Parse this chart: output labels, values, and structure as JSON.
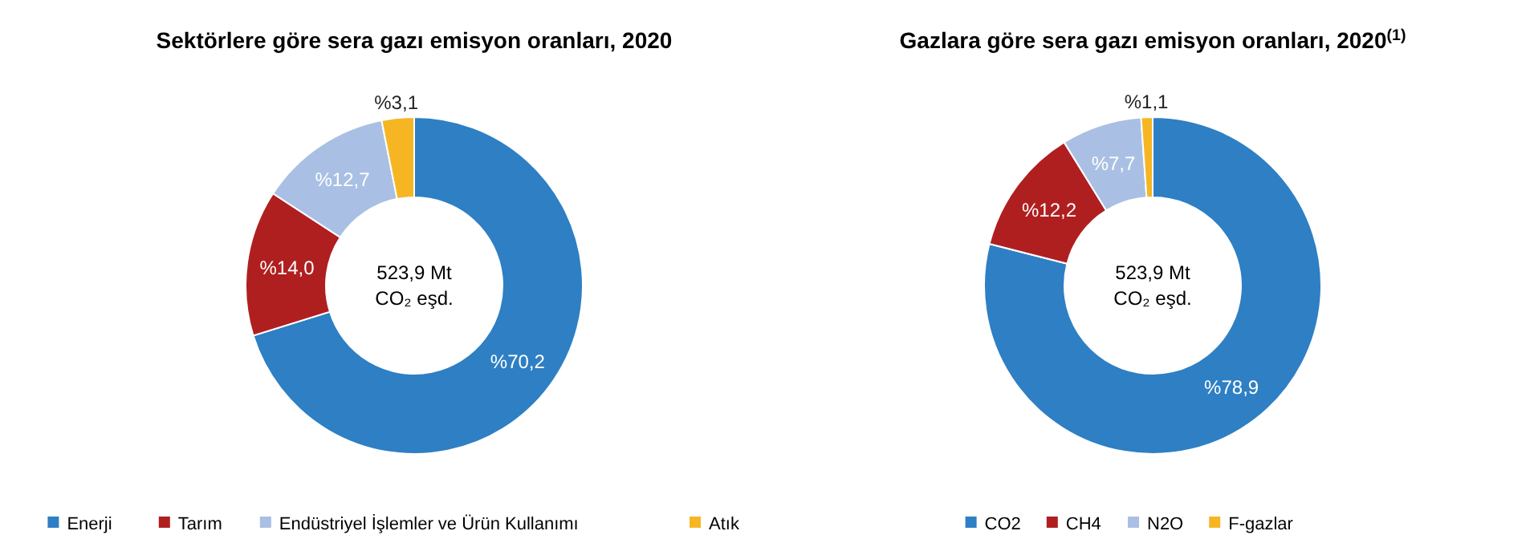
{
  "chart_data": [
    {
      "type": "donut",
      "title": "Sektörlere göre sera gazı emisyon oranları, 2020",
      "categories": [
        "Enerji",
        "Tarım",
        "Endüstriyel İşlemler ve Ürün Kullanımı",
        "Atık"
      ],
      "values": [
        70.2,
        14.0,
        12.7,
        3.1
      ],
      "colors": [
        "#2e7fc4",
        "#b01f1f",
        "#a9c0e4",
        "#f6b623"
      ],
      "value_labels": [
        "%70,2",
        "%14,0",
        "%12,7",
        "%3,1"
      ],
      "annotations": [
        "523,9 Mt",
        "CO₂ eşd."
      ],
      "legend": "bottom"
    },
    {
      "type": "donut",
      "title": "Gazlara göre sera gazı emisyon oranları, 2020$^{(1)}$",
      "categories": [
        "CO2",
        "CH4",
        "N2O",
        "F-gazlar"
      ],
      "values": [
        78.9,
        12.2,
        7.7,
        1.1
      ],
      "colors": [
        "#2e7fc4",
        "#b01f1f",
        "#a9c0e4",
        "#f6b623"
      ],
      "value_labels": [
        "%78,9",
        "%12,2",
        "%7,7",
        "%1,1"
      ],
      "annotations": [
        "523,9 Mt",
        "CO₂ eşd."
      ],
      "legend": "bottom"
    }
  ]
}
